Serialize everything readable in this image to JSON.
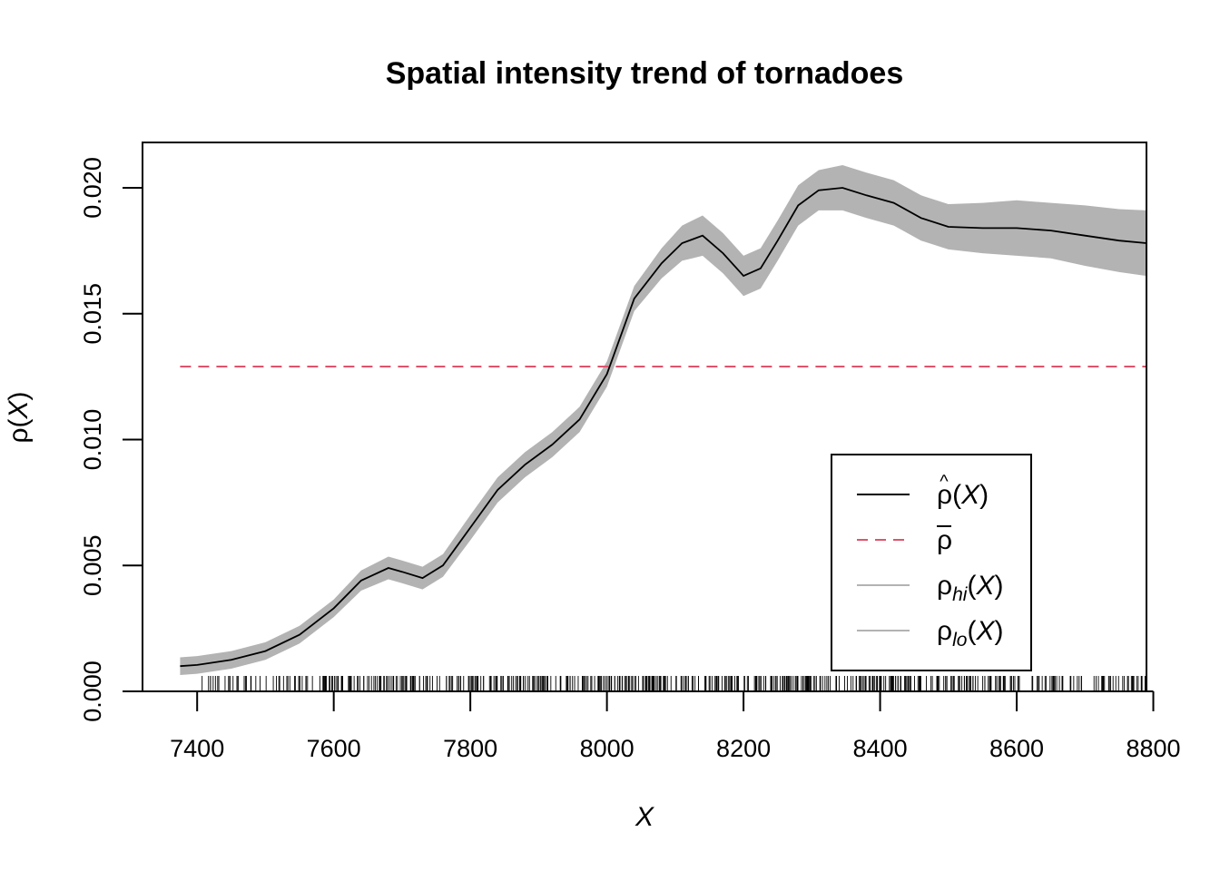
{
  "chart_data": {
    "type": "line",
    "title": "Spatial intensity trend of tornadoes",
    "xlabel": "X",
    "ylabel": "ρ(X)",
    "xlim": [
      7320,
      8790
    ],
    "ylim": [
      0.0,
      0.0218
    ],
    "x_ticks": [
      "7400",
      "7600",
      "7800",
      "8000",
      "8200",
      "8400",
      "8600",
      "8800"
    ],
    "y_ticks": [
      "0.000",
      "0.005",
      "0.010",
      "0.015",
      "0.020"
    ],
    "legend": {
      "position": "bottom-right",
      "entries": [
        {
          "id": "rho_hat",
          "base": "ρ",
          "accent": "^",
          "sub": "",
          "arg": "(X)",
          "style": "solid",
          "color": "#000000"
        },
        {
          "id": "rho_bar",
          "base": "ρ",
          "accent": "bar",
          "sub": "",
          "arg": "",
          "style": "dashed",
          "color": "#DF536B"
        },
        {
          "id": "rho_hi",
          "base": "ρ",
          "accent": "",
          "sub": "hi",
          "arg": "(X)",
          "style": "solid",
          "color": "#B3B3B3"
        },
        {
          "id": "rho_lo",
          "base": "ρ",
          "accent": "",
          "sub": "lo",
          "arg": "(X)",
          "style": "solid",
          "color": "#B3B3B3"
        }
      ]
    },
    "series": [
      {
        "name": "ρ̂(X)",
        "color": "#000000",
        "x": [
          7375,
          7400,
          7450,
          7500,
          7550,
          7600,
          7640,
          7680,
          7700,
          7730,
          7760,
          7800,
          7840,
          7880,
          7920,
          7960,
          8000,
          8040,
          8080,
          8110,
          8140,
          8170,
          8200,
          8225,
          8250,
          8280,
          8310,
          8345,
          8380,
          8420,
          8460,
          8500,
          8550,
          8600,
          8650,
          8700,
          8750,
          8790
        ],
        "y": [
          0.001,
          0.00105,
          0.00125,
          0.0016,
          0.00225,
          0.0033,
          0.0044,
          0.0049,
          0.00475,
          0.0045,
          0.005,
          0.0065,
          0.008,
          0.009,
          0.0098,
          0.0108,
          0.0126,
          0.0156,
          0.017,
          0.0178,
          0.0181,
          0.0174,
          0.0165,
          0.0168,
          0.0179,
          0.0193,
          0.0199,
          0.02,
          0.0197,
          0.0194,
          0.0188,
          0.01845,
          0.0184,
          0.0184,
          0.0183,
          0.0181,
          0.0179,
          0.0178
        ]
      },
      {
        "name": "ρ̅",
        "color": "#DF536B",
        "x": [
          7375,
          8790
        ],
        "y": [
          0.0129,
          0.0129
        ]
      },
      {
        "name": "ρhi(X)",
        "color": "#B3B3B3",
        "x": [
          7375,
          7400,
          7450,
          7500,
          7550,
          7600,
          7640,
          7680,
          7700,
          7730,
          7760,
          7800,
          7840,
          7880,
          7920,
          7960,
          8000,
          8040,
          8080,
          8110,
          8140,
          8170,
          8200,
          8225,
          8250,
          8280,
          8310,
          8345,
          8380,
          8420,
          8460,
          8500,
          8550,
          8600,
          8650,
          8700,
          8750,
          8790
        ],
        "y": [
          0.00135,
          0.0014,
          0.0016,
          0.00195,
          0.0026,
          0.00365,
          0.0048,
          0.00535,
          0.0052,
          0.00495,
          0.00545,
          0.007,
          0.0085,
          0.0095,
          0.0103,
          0.0113,
          0.0131,
          0.0161,
          0.0176,
          0.0185,
          0.0189,
          0.0182,
          0.0173,
          0.0176,
          0.0187,
          0.0201,
          0.0207,
          0.0209,
          0.0206,
          0.0203,
          0.0197,
          0.01935,
          0.0194,
          0.0195,
          0.0194,
          0.0193,
          0.01915,
          0.0191
        ]
      },
      {
        "name": "ρlo(X)",
        "color": "#B3B3B3",
        "x": [
          7375,
          7400,
          7450,
          7500,
          7550,
          7600,
          7640,
          7680,
          7700,
          7730,
          7760,
          7800,
          7840,
          7880,
          7920,
          7960,
          8000,
          8040,
          8080,
          8110,
          8140,
          8170,
          8200,
          8225,
          8250,
          8280,
          8310,
          8345,
          8380,
          8420,
          8460,
          8500,
          8550,
          8600,
          8650,
          8700,
          8750,
          8790
        ],
        "y": [
          0.00065,
          0.0007,
          0.0009,
          0.00125,
          0.0019,
          0.00295,
          0.004,
          0.00445,
          0.0043,
          0.00405,
          0.00455,
          0.006,
          0.0075,
          0.0085,
          0.0093,
          0.0103,
          0.0121,
          0.0151,
          0.0164,
          0.0171,
          0.0173,
          0.0166,
          0.0157,
          0.016,
          0.0171,
          0.0185,
          0.0191,
          0.0191,
          0.0188,
          0.0185,
          0.0179,
          0.01755,
          0.0174,
          0.0173,
          0.0172,
          0.0169,
          0.01665,
          0.0165
        ]
      }
    ],
    "rug": {
      "x_min": 7380,
      "x_max": 8790,
      "note": "dense event marks along the x-axis"
    },
    "grid": false
  }
}
